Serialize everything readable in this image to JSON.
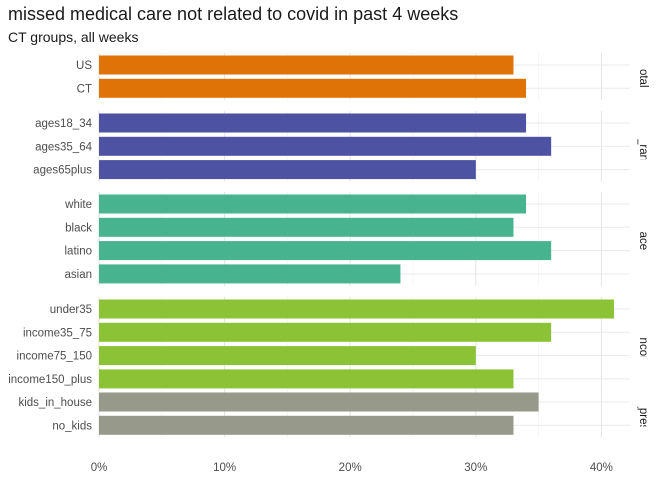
{
  "chart_data": {
    "type": "bar",
    "orientation": "horizontal",
    "title": "missed medical care not related to covid in past 4 weeks",
    "subtitle": "CT groups, all weeks",
    "xlabel": "",
    "ylabel": "",
    "xlim": [
      0,
      0.43
    ],
    "x_ticks": [
      "0%",
      "10%",
      "20%",
      "30%",
      "40%"
    ],
    "grid": true,
    "facets": [
      {
        "label": "total",
        "color": "#E07308",
        "categories": [
          "US",
          "CT"
        ],
        "values": [
          0.33,
          0.34
        ]
      },
      {
        "label": "age_range",
        "color": "#4D52A2",
        "categories": [
          "ages18_34",
          "ages35_64",
          "ages65plus"
        ],
        "values": [
          0.34,
          0.36,
          0.3
        ]
      },
      {
        "label": "race",
        "color": "#47B38F",
        "categories": [
          "white",
          "black",
          "latino",
          "asian"
        ],
        "values": [
          0.34,
          0.33,
          0.36,
          0.24
        ]
      },
      {
        "label": "hh_income",
        "color": "#8BC236",
        "categories": [
          "under35",
          "income35_75",
          "income75_150",
          "income150_plus"
        ],
        "values": [
          0.41,
          0.36,
          0.3,
          0.33
        ]
      },
      {
        "label": "kids_present",
        "color": "#979A8A",
        "categories": [
          "kids_in_house",
          "no_kids"
        ],
        "values": [
          0.35,
          0.33
        ]
      }
    ]
  }
}
